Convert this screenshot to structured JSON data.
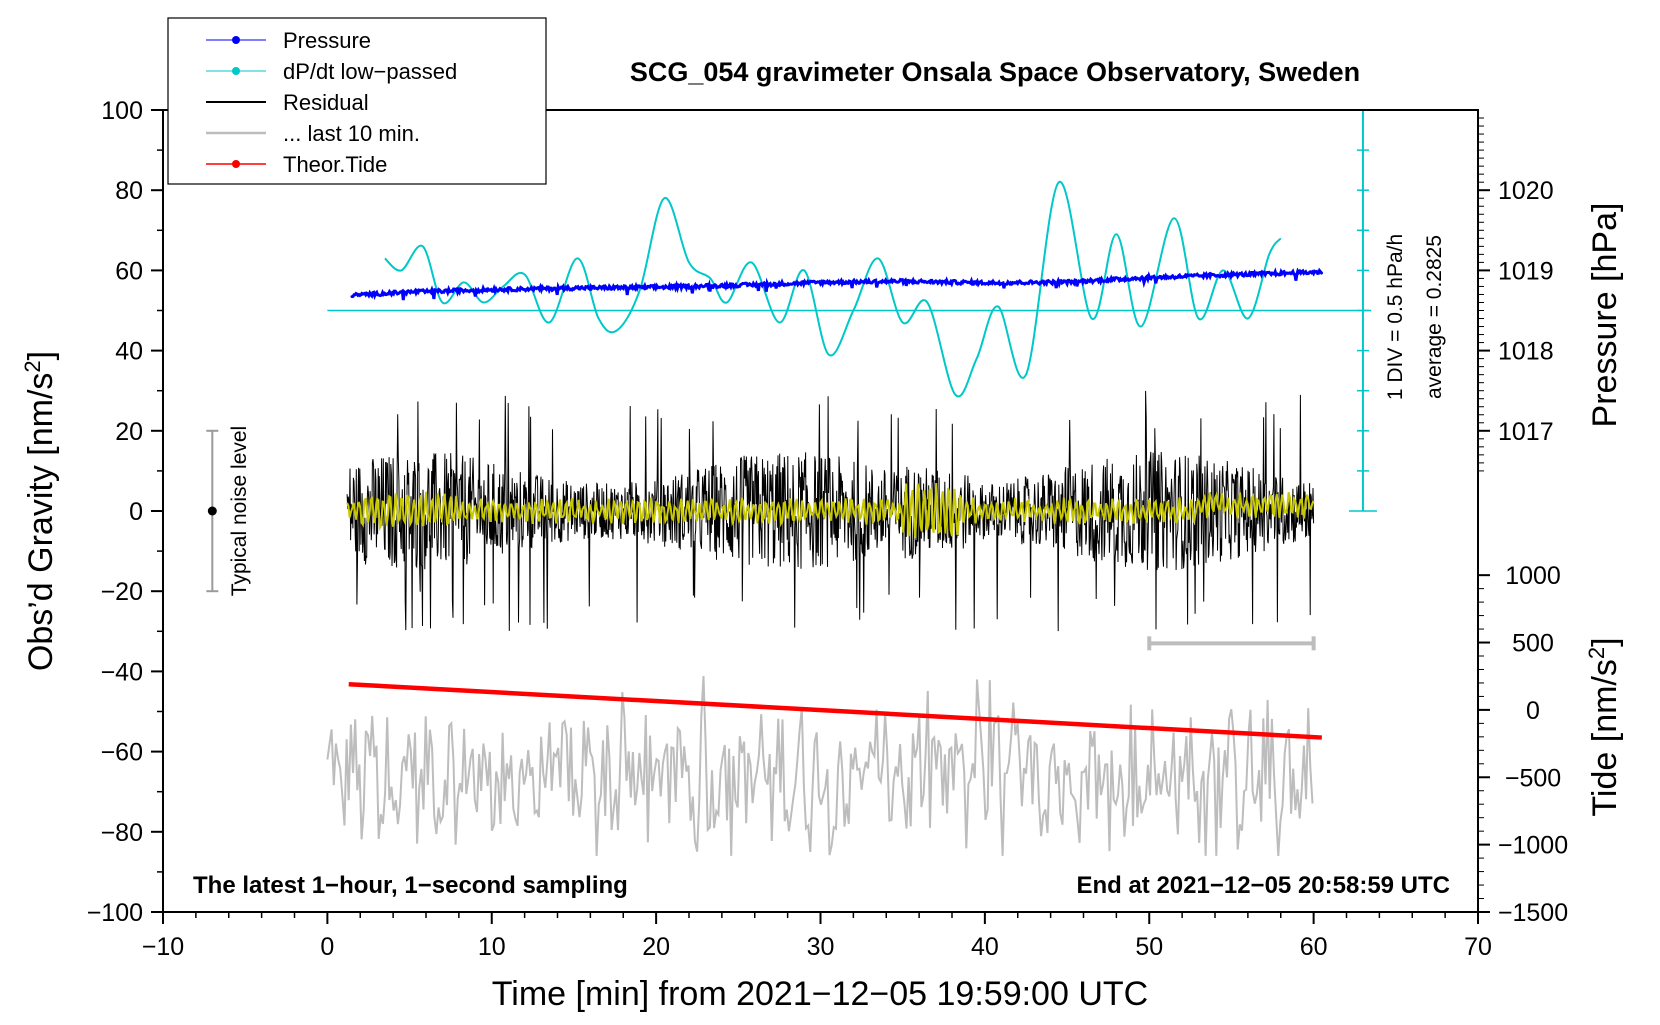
{
  "chart_data": {
    "type": "line",
    "title": "SCG_054 gravimeter Onsala Space Observatory, Sweden",
    "xlabel": "Time [min] from 2021−12−05 19:59:00 UTC",
    "ylabel_left": "Obs’d Gravity [nm/s",
    "ylabel_left_sup": "2",
    "ylabel_left_close": "]",
    "ylabel_pressure": "Pressure [hPa]",
    "ylabel_tide": "Tide [nm/s",
    "ylabel_tide_sup": "2",
    "ylabel_tide_close": "]",
    "xlim": [
      -10,
      70
    ],
    "ylim": [
      -100,
      100
    ],
    "x_ticks": [
      -10,
      0,
      10,
      20,
      30,
      40,
      50,
      60,
      70
    ],
    "x_tick_labels": [
      "−10",
      "0",
      "10",
      "20",
      "30",
      "40",
      "50",
      "60",
      "70"
    ],
    "y_ticks": [
      -100,
      -80,
      -60,
      -40,
      -20,
      0,
      20,
      40,
      60,
      80,
      100
    ],
    "y_tick_labels": [
      "−100",
      "−80",
      "−60",
      "−40",
      "−20",
      "0",
      "20",
      "40",
      "60",
      "80",
      "100"
    ],
    "pressure_axis": {
      "ticks": [
        1017,
        1018,
        1019,
        1020
      ],
      "tick_labels": [
        "1017",
        "1018",
        "1019",
        "1020"
      ],
      "gravity_at_1017": 20,
      "gravity_per_hPa": 20
    },
    "tide_axis": {
      "ticks": [
        1000,
        500,
        0,
        -500,
        -1000,
        -1500
      ],
      "tick_labels": [
        "1000",
        "500",
        "0",
        "−500",
        "−1000",
        "−1500"
      ],
      "gravity_at_minus_1500": -100,
      "gravity_per_500": 16.8
    },
    "series": [
      {
        "name": "Pressure",
        "color": "#0000ff",
        "description": "pressure mapped to gravity scale",
        "x": [
          1.5,
          5,
          10,
          15,
          20,
          25,
          30,
          35,
          40,
          45,
          50,
          55,
          60.5
        ],
        "y": [
          53.8,
          54.6,
          55.2,
          55.6,
          55.8,
          56.3,
          57.0,
          57.3,
          56.9,
          57.1,
          58.2,
          58.9,
          59.6
        ]
      },
      {
        "name": "dP/dt low−passed",
        "color": "#00c8c8",
        "x": [
          3.5,
          4.5,
          5.8,
          7,
          8.3,
          9.5,
          10.7,
          12,
          13.5,
          15.2,
          16.5,
          17.6,
          19,
          20.5,
          22,
          23.3,
          24.3,
          25.8,
          27.5,
          29,
          30.5,
          32,
          33.5,
          35,
          36.5,
          38.2,
          39.5,
          40.8,
          42.5,
          44.5,
          46.5,
          48,
          49.5,
          51.5,
          53,
          54.5,
          56,
          57.3,
          58
        ],
        "y": [
          63,
          60,
          66,
          52,
          57,
          52,
          56,
          59,
          47,
          63,
          48,
          45,
          55,
          78,
          62,
          58,
          52,
          62,
          47,
          60,
          39,
          50,
          63,
          47,
          52,
          29,
          38,
          51,
          34,
          82,
          48,
          69,
          46,
          73,
          48,
          60,
          48,
          64,
          68
        ]
      },
      {
        "name": "Residual",
        "color": "#000000",
        "x_range": [
          1.2,
          60
        ],
        "amplitude_range": [
          -32,
          30
        ]
      },
      {
        "name": "... last 10 min.",
        "color": "#bdbdbd",
        "x_range": [
          0,
          60
        ]
      },
      {
        "name": "Theor.Tide",
        "color": "#ff0000",
        "x": [
          1.3,
          60.5
        ],
        "y": [
          -43.2,
          -56.5
        ]
      }
    ],
    "zero_line_y": 50,
    "dpdt_scale": {
      "label": "1 DIV = 0.5 hPa/h",
      "average": "average = 0.2825",
      "x": 63,
      "y_from": 0,
      "y_to": 100
    },
    "noise_bar": {
      "label": "Typical noise level",
      "x": -7,
      "y_from": -20,
      "y_to": 20
    },
    "ten_min_bar": {
      "x_from": 50,
      "x_to": 60,
      "y": -33
    },
    "footer_left": "The latest 1−hour, 1−second sampling",
    "footer_right": "End at 2021−12−05 20:58:59 UTC",
    "legend": [
      "Pressure",
      "dP/dt low−passed",
      "Residual",
      "... last 10 min.",
      "Theor.Tide"
    ],
    "colors": {
      "pressure": "#0000ff",
      "dpdt": "#00c8c8",
      "residual": "#000000",
      "smooth": "#c8c800",
      "last10": "#bdbdbd",
      "tide": "#ff0000",
      "noise": "#9a9a9a"
    }
  }
}
